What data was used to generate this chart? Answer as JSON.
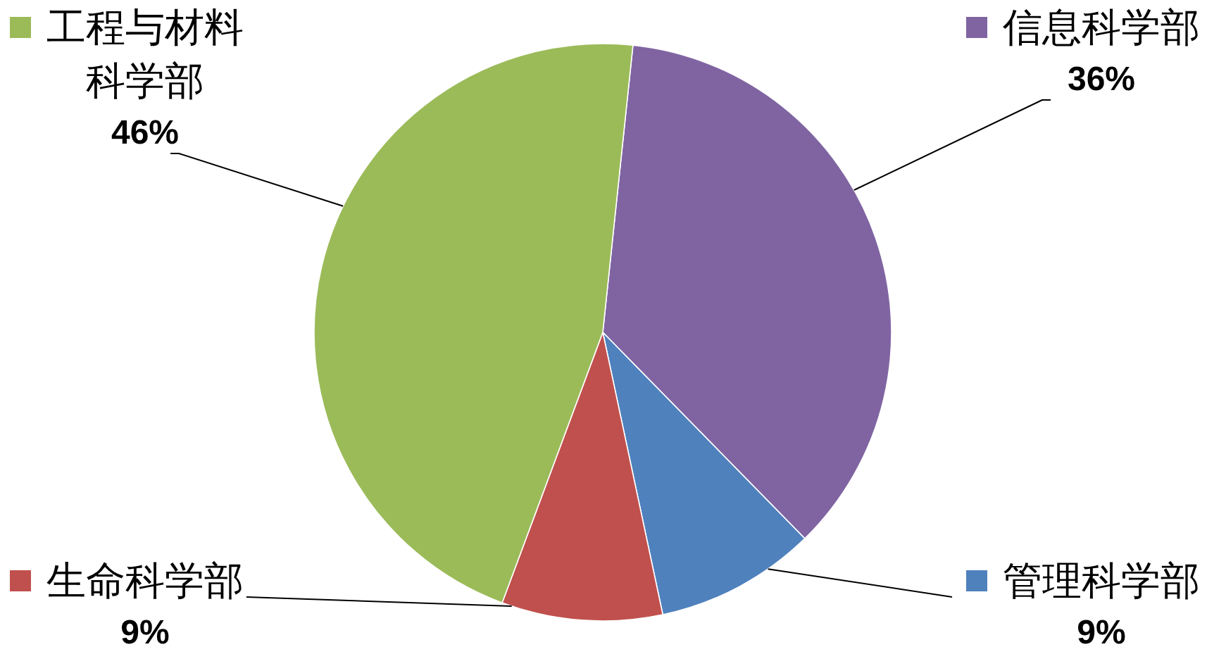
{
  "chart_data": {
    "type": "pie",
    "categories": [
      "信息科学部",
      "管理科学部",
      "生命科学部",
      "工程与材料科学部"
    ],
    "values": [
      36,
      9,
      9,
      46
    ],
    "colors": [
      "#8064a2",
      "#4f81bd",
      "#c0504d",
      "#9bbb59"
    ],
    "value_labels": [
      "36%",
      "9%",
      "9%",
      "46%"
    ],
    "legend": "left"
  }
}
